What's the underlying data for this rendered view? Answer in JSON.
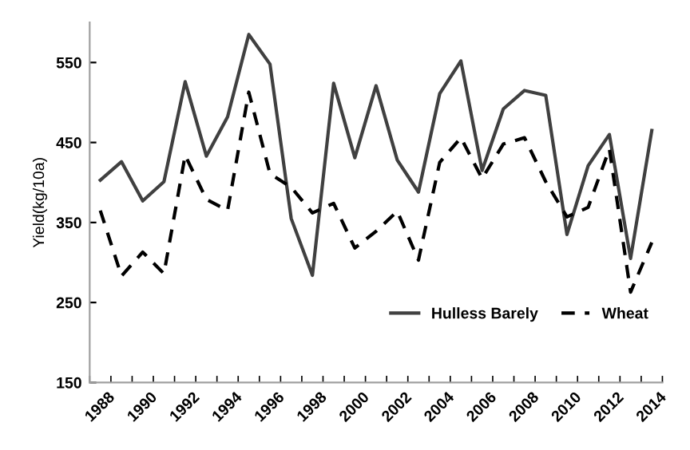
{
  "chart_data": {
    "type": "line",
    "ylabel": "Yield(kg/10a)",
    "categories": [
      "1988",
      null,
      "1990",
      null,
      "1992",
      null,
      "1994",
      null,
      "1996",
      null,
      "1998",
      null,
      "2000",
      null,
      "2002",
      null,
      "2004",
      null,
      "2006",
      null,
      "2008",
      null,
      "2010",
      null,
      "2012",
      null,
      "2014"
    ],
    "series": [
      {
        "name": "Hulless Barely",
        "color": "#404040",
        "line_style": "solid",
        "values": [
          403,
          426,
          377,
          401,
          526,
          433,
          482,
          585,
          548,
          355,
          284,
          524,
          431,
          521,
          428,
          388,
          511,
          552,
          415,
          492,
          515,
          509,
          335,
          421,
          460,
          305,
          465
        ]
      },
      {
        "name": "Wheat",
        "color": "#000000",
        "line_style": "dashed",
        "values": [
          365,
          283,
          313,
          286,
          434,
          379,
          365,
          513,
          411,
          394,
          362,
          374,
          318,
          339,
          364,
          303,
          425,
          456,
          405,
          448,
          456,
          401,
          357,
          369,
          442,
          263,
          325
        ]
      }
    ],
    "ylim": [
      150,
      600
    ],
    "yticks": [
      150,
      250,
      350,
      450,
      550
    ],
    "grid": false,
    "legend": "bottom right",
    "marker": "none"
  }
}
